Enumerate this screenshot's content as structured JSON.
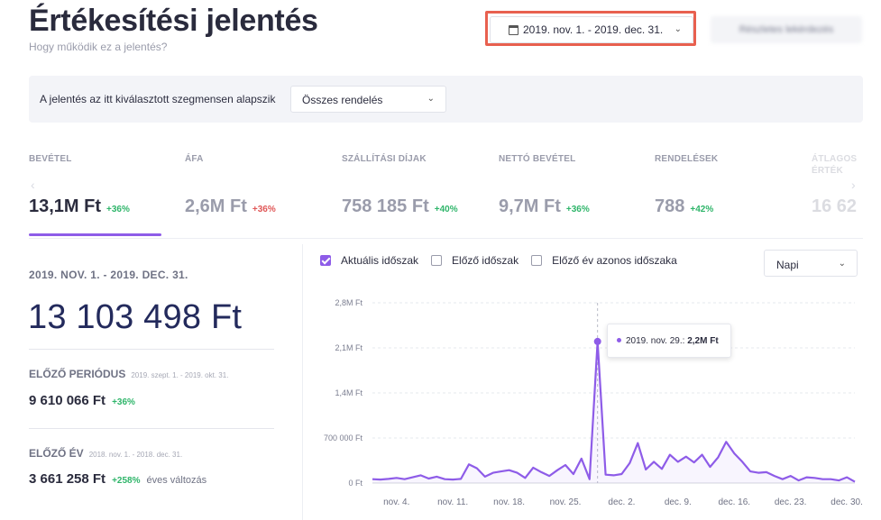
{
  "header": {
    "title": "Értékesítési jelentés",
    "subtitle": "Hogy működik ez a jelentés?",
    "date_range": "2019. nov. 1. - 2019. dec. 31.",
    "blurred_button": "Részletes lekérdezés"
  },
  "segment": {
    "label": "A jelentés az itt kiválasztott szegmensen alapszik",
    "selected": "Összes rendelés"
  },
  "metrics": [
    {
      "label": "BEVÉTEL",
      "value": "13,1M Ft",
      "change": "+36%"
    },
    {
      "label": "ÁFA",
      "value": "2,6M Ft",
      "change": "+36%"
    },
    {
      "label": "SZÁLLÍTÁSI DÍJAK",
      "value": "758 185 Ft",
      "change": "+40%"
    },
    {
      "label": "NETTÓ BEVÉTEL",
      "value": "9,7M Ft",
      "change": "+36%"
    },
    {
      "label": "RENDELÉSEK",
      "value": "788",
      "change": "+42%"
    },
    {
      "label": "ÁTLAGOS ÉRTÉK",
      "value": "16 62"
    }
  ],
  "summary": {
    "period": "2019. NOV. 1. - 2019. DEC. 31.",
    "total": "13 103 498 Ft",
    "prev_period_label": "ELŐZŐ PERIÓDUS",
    "prev_period_range": "2019. szept. 1. - 2019. okt. 31.",
    "prev_period_value": "9 610 066 Ft",
    "prev_period_change": "+36%",
    "prev_year_label": "ELŐZŐ ÉV",
    "prev_year_range": "2018. nov. 1. - 2018. dec. 31.",
    "prev_year_value": "3 661 258 Ft",
    "prev_year_change": "+258%",
    "prev_year_note": "éves változás"
  },
  "checks": [
    {
      "label": "Aktuális időszak",
      "checked": true
    },
    {
      "label": "Előző időszak",
      "checked": false
    },
    {
      "label": "Előző év azonos időszaka",
      "checked": false
    }
  ],
  "granularity": "Napi",
  "tooltip": {
    "label": "2019. nov. 29.:",
    "value": "2,2M Ft"
  },
  "colors": {
    "accent": "#8e5ce8",
    "positive": "#2fb56a",
    "negative": "#e05757",
    "highlight": "#e8604f"
  },
  "chart_data": {
    "type": "line",
    "y_ticks": [
      "0 Ft",
      "700 000 Ft",
      "1,4M Ft",
      "2,1M Ft",
      "2,8M Ft"
    ],
    "ylim": [
      0,
      2800000
    ],
    "x_ticks": [
      "nov. 4.",
      "nov. 11.",
      "nov. 18.",
      "nov. 25.",
      "dec. 2.",
      "dec. 9.",
      "dec. 16.",
      "dec. 23.",
      "dec. 30."
    ],
    "x_tick_day_index": [
      3,
      10,
      17,
      24,
      31,
      38,
      45,
      52,
      59
    ],
    "days": 61,
    "series": [
      {
        "values": [
          60000,
          55000,
          65000,
          80000,
          60000,
          90000,
          120000,
          70000,
          100000,
          60000,
          55000,
          65000,
          290000,
          230000,
          100000,
          160000,
          180000,
          200000,
          160000,
          80000,
          240000,
          170000,
          110000,
          200000,
          280000,
          140000,
          380000,
          60000,
          2200000,
          130000,
          120000,
          140000,
          310000,
          620000,
          210000,
          330000,
          220000,
          440000,
          330000,
          410000,
          320000,
          440000,
          250000,
          400000,
          640000,
          460000,
          330000,
          180000,
          160000,
          170000,
          110000,
          60000,
          110000,
          40000,
          90000,
          80000,
          60000,
          60000,
          40000,
          90000,
          20000
        ]
      }
    ]
  }
}
